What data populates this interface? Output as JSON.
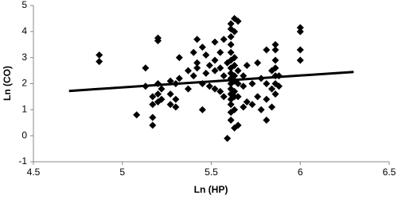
{
  "chart_data": {
    "type": "scatter",
    "xlabel": "Ln (HP)",
    "ylabel": "Ln (CO)",
    "color": "#000000",
    "x": [
      4.87,
      4.87,
      5.08,
      5.13,
      5.13,
      5.17,
      5.17,
      5.17,
      5.17,
      5.2,
      5.2,
      5.2,
      5.2,
      5.2,
      5.22,
      5.22,
      5.27,
      5.27,
      5.27,
      5.3,
      5.3,
      5.3,
      5.32,
      5.32,
      5.37,
      5.37,
      5.4,
      5.4,
      5.42,
      5.42,
      5.42,
      5.45,
      5.45,
      5.45,
      5.47,
      5.47,
      5.49,
      5.49,
      5.52,
      5.52,
      5.52,
      5.52,
      5.55,
      5.55,
      5.55,
      5.57,
      5.57,
      5.57,
      5.59,
      5.59,
      5.61,
      5.61,
      5.61,
      5.61,
      5.61,
      5.61,
      5.61,
      5.61,
      5.61,
      5.61,
      5.61,
      5.61,
      5.61,
      5.61,
      5.61,
      5.61,
      5.63,
      5.63,
      5.63,
      5.63,
      5.63,
      5.63,
      5.63,
      5.63,
      5.63,
      5.63,
      5.65,
      5.65,
      5.65,
      5.65,
      5.65,
      5.68,
      5.68,
      5.68,
      5.7,
      5.7,
      5.73,
      5.73,
      5.76,
      5.76,
      5.78,
      5.78,
      5.81,
      5.81,
      5.81,
      5.81,
      5.84,
      5.84,
      5.84,
      5.86,
      5.86,
      5.86,
      5.86,
      5.86,
      5.86,
      5.86,
      5.88,
      5.88,
      6.0,
      6.0,
      6.0,
      6.0
    ],
    "y": [
      3.1,
      2.85,
      0.8,
      2.6,
      1.9,
      1.2,
      0.7,
      0.4,
      1.5,
      3.75,
      3.65,
      2.0,
      1.6,
      1.3,
      1.8,
      1.4,
      2.1,
      1.6,
      1.2,
      2.0,
      1.4,
      1.1,
      3.0,
      2.2,
      2.5,
      1.8,
      3.2,
      2.3,
      3.7,
      2.8,
      2.6,
      3.4,
      2.0,
      1.0,
      3.1,
      2.4,
      2.7,
      1.9,
      3.6,
      2.9,
      2.5,
      1.8,
      3.2,
      2.6,
      1.7,
      3.7,
      2.3,
      1.5,
      -0.1,
      2.8,
      4.3,
      4.1,
      3.8,
      3.5,
      3.2,
      2.9,
      2.6,
      2.4,
      2.2,
      2.0,
      1.8,
      1.6,
      1.4,
      1.2,
      0.9,
      0.6,
      4.5,
      4.0,
      3.0,
      2.7,
      2.3,
      2.1,
      1.7,
      1.5,
      1.0,
      0.3,
      4.4,
      2.5,
      2.0,
      1.5,
      0.4,
      2.3,
      1.9,
      1.1,
      2.7,
      1.3,
      2.0,
      1.2,
      2.8,
      1.5,
      2.2,
      1.0,
      3.3,
      2.0,
      1.4,
      0.6,
      2.5,
      1.8,
      1.1,
      3.5,
      3.3,
      2.9,
      2.6,
      2.3,
      2.0,
      1.6,
      2.3,
      1.9,
      4.15,
      4.0,
      3.3,
      2.9
    ],
    "trendline": {
      "x": [
        4.7,
        6.3
      ],
      "y": [
        1.72,
        2.45
      ]
    },
    "xlim": [
      4.5,
      6.5
    ],
    "xticks": [
      4.5,
      5,
      5.5,
      6,
      6.5
    ],
    "ylim": [
      -1,
      5
    ],
    "yticks": [
      -1,
      0,
      1,
      2,
      3,
      4,
      5
    ]
  }
}
